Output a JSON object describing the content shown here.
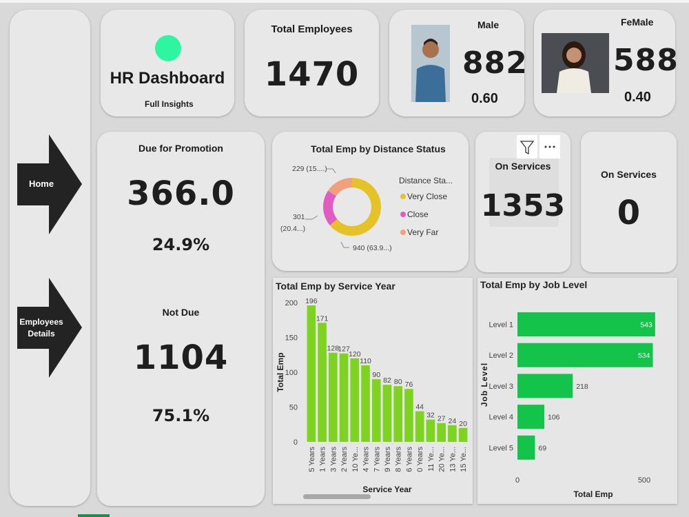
{
  "nav": {
    "home_label": "Home",
    "employees_label_1": "Employees",
    "employees_label_2": "Details"
  },
  "header": {
    "title": "HR Dashboard",
    "subtitle": "Full Insights"
  },
  "kpis": {
    "total_employees_label": "Total Employees",
    "total_employees_value": "1470",
    "male_label": "Male",
    "male_value": "882",
    "male_ratio": "0.60",
    "female_label": "FeMale",
    "female_value": "588",
    "female_ratio": "0.40",
    "promotion_label": "Due for Promotion",
    "promotion_value": "366.0",
    "promotion_pct": "24.9%",
    "not_due_label": "Not Due",
    "not_due_value": "1104",
    "not_due_pct": "75.1%",
    "on_services_label": "On Services",
    "on_services_value": "1353",
    "on_services2_label": "On Services",
    "on_services2_value": "0"
  },
  "colors": {
    "accent_dot": "#2ef5a0",
    "bar_green": "#7ed321",
    "job_green": "#14c44a",
    "very_close": "#e6c229",
    "close": "#e15cc0",
    "very_far": "#f0a07a"
  },
  "chart_data": [
    {
      "type": "pie",
      "title": "Total Emp by Distance Status",
      "legend_title": "Distance Sta...",
      "legend_position": "right",
      "slices": [
        {
          "label": "Very Close",
          "value": 940,
          "data_label": "940 (63.9...)"
        },
        {
          "label": "Close",
          "value": 301,
          "data_label_1": "301",
          "data_label_2": "(20.4...)"
        },
        {
          "label": "Very Far",
          "value": 229,
          "data_label": "229 (15....)"
        }
      ]
    },
    {
      "type": "bar",
      "title": "Total Emp by Service Year",
      "xlabel": "Service Year",
      "ylabel": "Total Emp",
      "ylim": [
        0,
        200
      ],
      "yticks": [
        "0",
        "50",
        "100",
        "150",
        "200"
      ],
      "categories": [
        "5 Years",
        "1 Years",
        "3 Years",
        "2 Years",
        "10 Ye...",
        "4 Years",
        "7 Years",
        "9 Years",
        "8 Years",
        "6 Years",
        "0 Years",
        "11 Ye...",
        "20 Ye...",
        "13 Ye...",
        "15 Ye..."
      ],
      "values": [
        196,
        171,
        128,
        127,
        120,
        110,
        90,
        82,
        80,
        76,
        44,
        32,
        27,
        24,
        20
      ]
    },
    {
      "type": "bar",
      "orientation": "horizontal",
      "title": "Total Emp by Job Level",
      "xlabel": "Total Emp",
      "ylabel": "Job Level",
      "xticks": [
        "0",
        "500"
      ],
      "categories": [
        "Level 1",
        "Level 2",
        "Level 3",
        "Level 4",
        "Level 5"
      ],
      "values": [
        543,
        534,
        218,
        106,
        69
      ]
    }
  ]
}
